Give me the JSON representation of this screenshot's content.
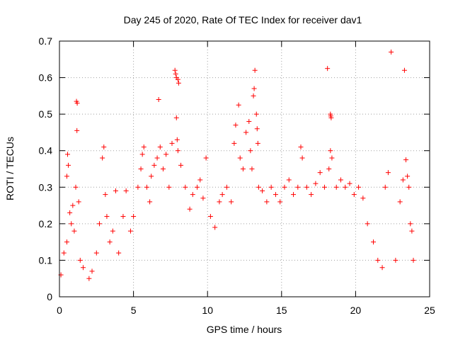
{
  "chart_data": {
    "type": "scatter",
    "title": "Day 245 of 2020, Rate Of TEC Index for receiver dav1",
    "xlabel": "GPS time / hours",
    "ylabel": "ROTI / TECUs",
    "xlim": [
      0,
      25
    ],
    "ylim": [
      0,
      0.7
    ],
    "xticks": [
      0,
      5,
      10,
      15,
      20,
      25
    ],
    "yticks": [
      0,
      0.1,
      0.2,
      0.3,
      0.4,
      0.5,
      0.6,
      0.7
    ],
    "xtick_labels": [
      "0",
      "5",
      "10",
      "15",
      "20",
      "25"
    ],
    "ytick_labels": [
      "0",
      "0.1",
      "0.2",
      "0.3",
      "0.4",
      "0.5",
      "0.6",
      "0.7"
    ],
    "grid": true,
    "marker": "+",
    "color": "#ff0000",
    "series": [
      {
        "points": [
          [
            0.1,
            0.06
          ],
          [
            0.3,
            0.12
          ],
          [
            0.5,
            0.15
          ],
          [
            0.8,
            0.2
          ],
          [
            0.9,
            0.25
          ],
          [
            0.5,
            0.33
          ],
          [
            0.6,
            0.36
          ],
          [
            0.55,
            0.39
          ],
          [
            0.7,
            0.23
          ],
          [
            1.0,
            0.18
          ],
          [
            1.1,
            0.3
          ],
          [
            1.2,
            0.53
          ],
          [
            1.15,
            0.535
          ],
          [
            1.18,
            0.455
          ],
          [
            1.3,
            0.26
          ],
          [
            1.4,
            0.1
          ],
          [
            1.6,
            0.08
          ],
          [
            2.0,
            0.05
          ],
          [
            2.2,
            0.07
          ],
          [
            2.5,
            0.12
          ],
          [
            2.7,
            0.2
          ],
          [
            2.9,
            0.38
          ],
          [
            3.0,
            0.41
          ],
          [
            3.1,
            0.28
          ],
          [
            3.2,
            0.22
          ],
          [
            3.4,
            0.15
          ],
          [
            3.6,
            0.18
          ],
          [
            3.8,
            0.29
          ],
          [
            4.0,
            0.12
          ],
          [
            4.3,
            0.22
          ],
          [
            4.5,
            0.29
          ],
          [
            4.8,
            0.18
          ],
          [
            5.0,
            0.22
          ],
          [
            5.3,
            0.3
          ],
          [
            5.5,
            0.35
          ],
          [
            5.6,
            0.39
          ],
          [
            5.7,
            0.41
          ],
          [
            5.9,
            0.3
          ],
          [
            6.1,
            0.26
          ],
          [
            6.2,
            0.33
          ],
          [
            6.4,
            0.36
          ],
          [
            6.6,
            0.38
          ],
          [
            6.7,
            0.54
          ],
          [
            6.8,
            0.41
          ],
          [
            7.0,
            0.35
          ],
          [
            7.2,
            0.39
          ],
          [
            7.4,
            0.3
          ],
          [
            7.6,
            0.42
          ],
          [
            7.8,
            0.62
          ],
          [
            7.85,
            0.61
          ],
          [
            7.9,
            0.6
          ],
          [
            8.0,
            0.595
          ],
          [
            8.05,
            0.585
          ],
          [
            7.9,
            0.49
          ],
          [
            7.95,
            0.43
          ],
          [
            8.0,
            0.4
          ],
          [
            8.2,
            0.36
          ],
          [
            8.5,
            0.3
          ],
          [
            8.8,
            0.24
          ],
          [
            9.0,
            0.28
          ],
          [
            9.3,
            0.3
          ],
          [
            9.5,
            0.32
          ],
          [
            9.7,
            0.27
          ],
          [
            9.9,
            0.38
          ],
          [
            10.2,
            0.22
          ],
          [
            10.5,
            0.19
          ],
          [
            10.8,
            0.26
          ],
          [
            11.0,
            0.28
          ],
          [
            11.3,
            0.3
          ],
          [
            11.6,
            0.26
          ],
          [
            11.8,
            0.42
          ],
          [
            11.9,
            0.47
          ],
          [
            12.1,
            0.525
          ],
          [
            12.2,
            0.38
          ],
          [
            12.4,
            0.35
          ],
          [
            12.6,
            0.45
          ],
          [
            12.8,
            0.48
          ],
          [
            12.9,
            0.4
          ],
          [
            13.0,
            0.35
          ],
          [
            13.1,
            0.55
          ],
          [
            13.15,
            0.57
          ],
          [
            13.2,
            0.62
          ],
          [
            13.3,
            0.5
          ],
          [
            13.35,
            0.46
          ],
          [
            13.4,
            0.42
          ],
          [
            13.45,
            0.3
          ],
          [
            13.7,
            0.29
          ],
          [
            14.0,
            0.26
          ],
          [
            14.3,
            0.3
          ],
          [
            14.6,
            0.28
          ],
          [
            14.9,
            0.26
          ],
          [
            15.2,
            0.3
          ],
          [
            15.5,
            0.32
          ],
          [
            15.8,
            0.28
          ],
          [
            16.1,
            0.3
          ],
          [
            16.3,
            0.41
          ],
          [
            16.4,
            0.38
          ],
          [
            16.7,
            0.3
          ],
          [
            17.0,
            0.28
          ],
          [
            17.3,
            0.31
          ],
          [
            17.6,
            0.34
          ],
          [
            17.9,
            0.3
          ],
          [
            18.1,
            0.625
          ],
          [
            18.2,
            0.35
          ],
          [
            18.3,
            0.5
          ],
          [
            18.32,
            0.495
          ],
          [
            18.35,
            0.49
          ],
          [
            18.3,
            0.4
          ],
          [
            18.4,
            0.38
          ],
          [
            18.7,
            0.3
          ],
          [
            19.0,
            0.32
          ],
          [
            19.3,
            0.3
          ],
          [
            19.6,
            0.31
          ],
          [
            19.9,
            0.28
          ],
          [
            20.2,
            0.3
          ],
          [
            20.5,
            0.27
          ],
          [
            20.8,
            0.2
          ],
          [
            21.2,
            0.15
          ],
          [
            21.5,
            0.1
          ],
          [
            21.8,
            0.08
          ],
          [
            22.0,
            0.3
          ],
          [
            22.2,
            0.34
          ],
          [
            22.4,
            0.67
          ],
          [
            22.7,
            0.1
          ],
          [
            23.0,
            0.26
          ],
          [
            23.2,
            0.32
          ],
          [
            23.3,
            0.62
          ],
          [
            23.4,
            0.375
          ],
          [
            23.5,
            0.33
          ],
          [
            23.6,
            0.3
          ],
          [
            23.7,
            0.2
          ],
          [
            23.8,
            0.18
          ],
          [
            23.9,
            0.1
          ]
        ]
      }
    ]
  }
}
